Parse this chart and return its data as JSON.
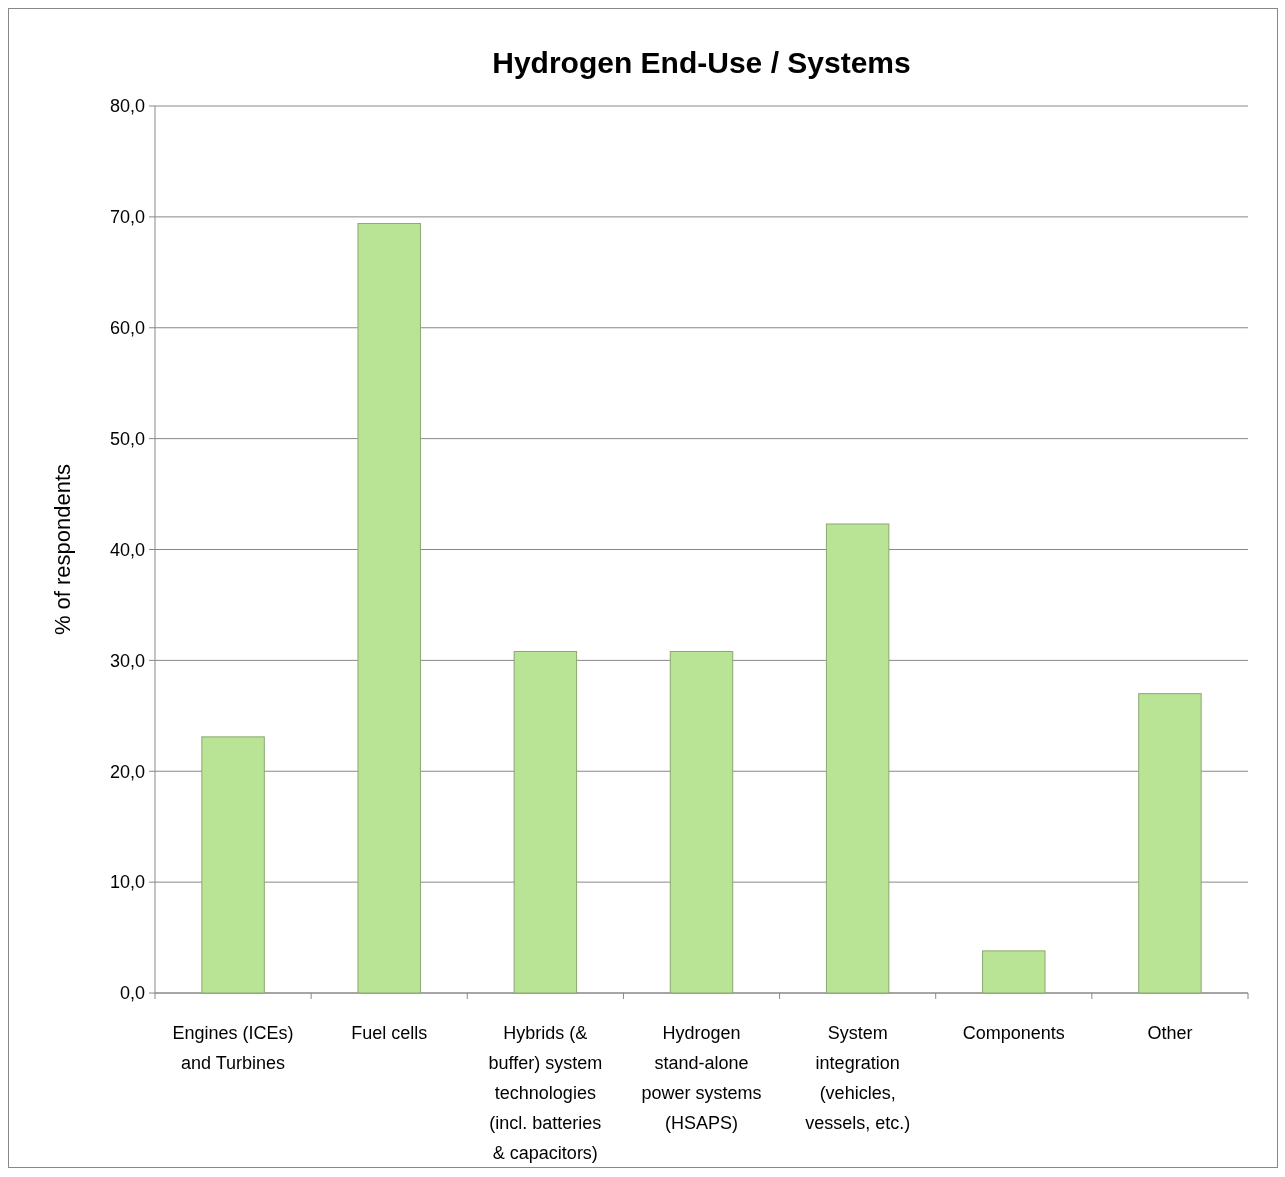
{
  "chart_data": {
    "type": "bar",
    "title": "Hydrogen End-Use / Systems",
    "ylabel": "% of respondents",
    "categories": [
      "Engines (ICEs) and Turbines",
      "Fuel cells",
      "Hybrids (& buffer) system technologies (incl. batteries & capacitors)",
      "Hydrogen stand-alone power systems (HSAPS)",
      "System integration (vehicles, vessels, etc.)",
      "Components",
      "Other"
    ],
    "values": [
      23.1,
      69.4,
      30.8,
      30.8,
      42.3,
      3.8,
      27.0
    ],
    "color": "#b9e496",
    "ylim": [
      0,
      80
    ],
    "yticks": [
      {
        "value": 0,
        "label": "0,0"
      },
      {
        "value": 10,
        "label": "10,0"
      },
      {
        "value": 20,
        "label": "20,0"
      },
      {
        "value": 30,
        "label": "30,0"
      },
      {
        "value": 40,
        "label": "40,0"
      },
      {
        "value": 50,
        "label": "50,0"
      },
      {
        "value": 60,
        "label": "60,0"
      },
      {
        "value": 70,
        "label": "70,0"
      },
      {
        "value": 80,
        "label": "80,0"
      }
    ],
    "grid": "y"
  }
}
